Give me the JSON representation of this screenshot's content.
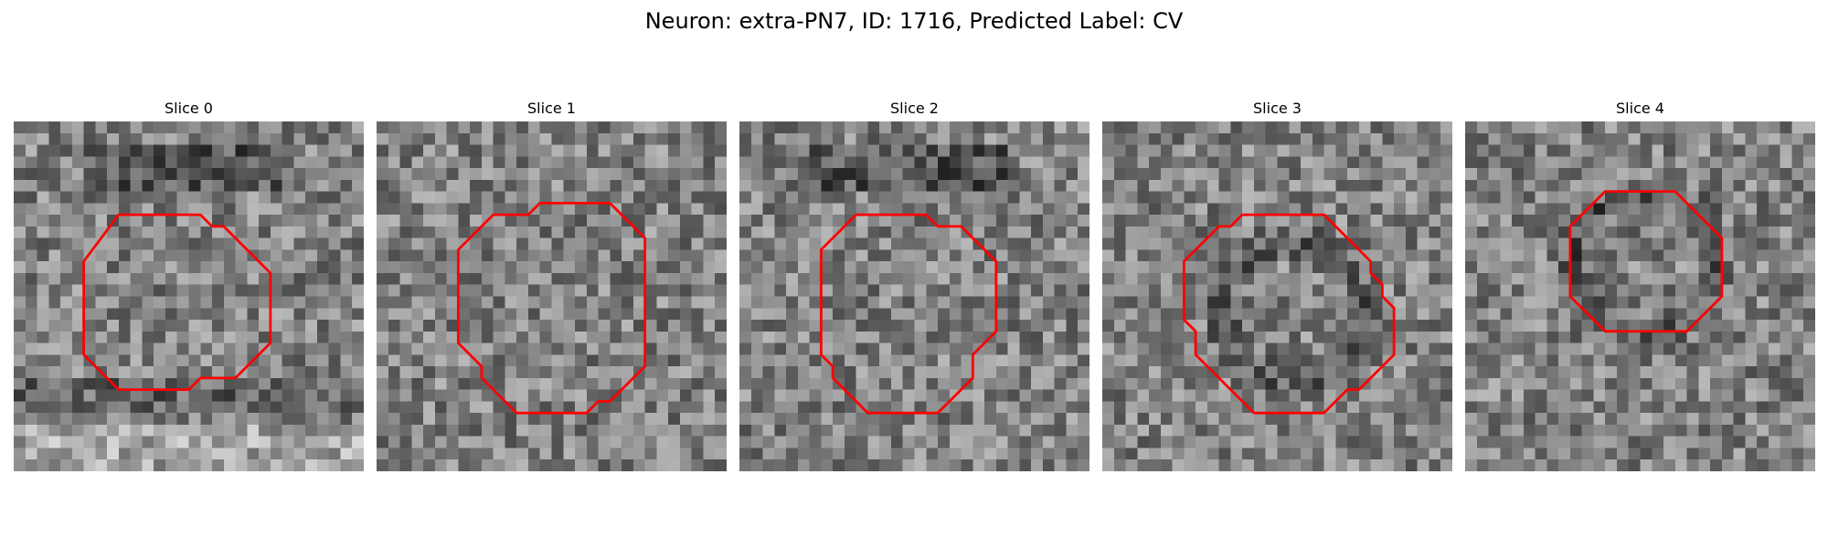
{
  "figure": {
    "title": "Neuron: extra-PN7, ID: 1716, Predicted Label: CV"
  },
  "grid_size": 30,
  "contour_color": "#ff0000",
  "colormap": "gray",
  "slices": [
    {
      "label": "Slice 0",
      "seed": 11,
      "dark_ring": false,
      "dark_top_band": true,
      "contour": [
        [
          9,
          8
        ],
        [
          16,
          8
        ],
        [
          17,
          9
        ],
        [
          18,
          9
        ],
        [
          19,
          10
        ],
        [
          22,
          13
        ],
        [
          22,
          19
        ],
        [
          19,
          22
        ],
        [
          16,
          22
        ],
        [
          15,
          23
        ],
        [
          9,
          23
        ],
        [
          6,
          20
        ],
        [
          6,
          12
        ]
      ]
    },
    {
      "label": "Slice 1",
      "seed": 23,
      "dark_ring": false,
      "dark_top_band": false,
      "contour": [
        [
          10,
          8
        ],
        [
          13,
          8
        ],
        [
          14,
          7
        ],
        [
          20,
          7
        ],
        [
          23,
          10
        ],
        [
          23,
          21
        ],
        [
          20,
          24
        ],
        [
          19,
          24
        ],
        [
          18,
          25
        ],
        [
          12,
          25
        ],
        [
          9,
          22
        ],
        [
          9,
          21
        ],
        [
          8,
          20
        ],
        [
          7,
          19
        ],
        [
          7,
          11
        ]
      ]
    },
    {
      "label": "Slice 2",
      "seed": 37,
      "dark_ring": false,
      "dark_top_band": true,
      "contour": [
        [
          10,
          8
        ],
        [
          16,
          8
        ],
        [
          17,
          9
        ],
        [
          19,
          9
        ],
        [
          22,
          12
        ],
        [
          22,
          18
        ],
        [
          21,
          19
        ],
        [
          20,
          20
        ],
        [
          20,
          22
        ],
        [
          17,
          25
        ],
        [
          11,
          25
        ],
        [
          8,
          22
        ],
        [
          8,
          21
        ],
        [
          7,
          20
        ],
        [
          7,
          11
        ]
      ]
    },
    {
      "label": "Slice 3",
      "seed": 53,
      "dark_ring": true,
      "dark_top_band": false,
      "contour": [
        [
          12,
          8
        ],
        [
          19,
          8
        ],
        [
          22,
          11
        ],
        [
          23,
          12
        ],
        [
          23,
          13
        ],
        [
          24,
          14
        ],
        [
          24,
          15
        ],
        [
          25,
          16
        ],
        [
          25,
          20
        ],
        [
          22,
          23
        ],
        [
          21,
          23
        ],
        [
          19,
          25
        ],
        [
          13,
          25
        ],
        [
          10,
          22
        ],
        [
          9,
          21
        ],
        [
          8,
          20
        ],
        [
          8,
          18
        ],
        [
          7,
          17
        ],
        [
          7,
          12
        ],
        [
          10,
          9
        ],
        [
          11,
          9
        ]
      ]
    },
    {
      "label": "Slice 4",
      "seed": 71,
      "dark_ring": true,
      "dark_top_band": false,
      "contour": [
        [
          12,
          6
        ],
        [
          18,
          6
        ],
        [
          22,
          10
        ],
        [
          22,
          15
        ],
        [
          19,
          18
        ],
        [
          12,
          18
        ],
        [
          9,
          15
        ],
        [
          9,
          9
        ]
      ]
    }
  ]
}
